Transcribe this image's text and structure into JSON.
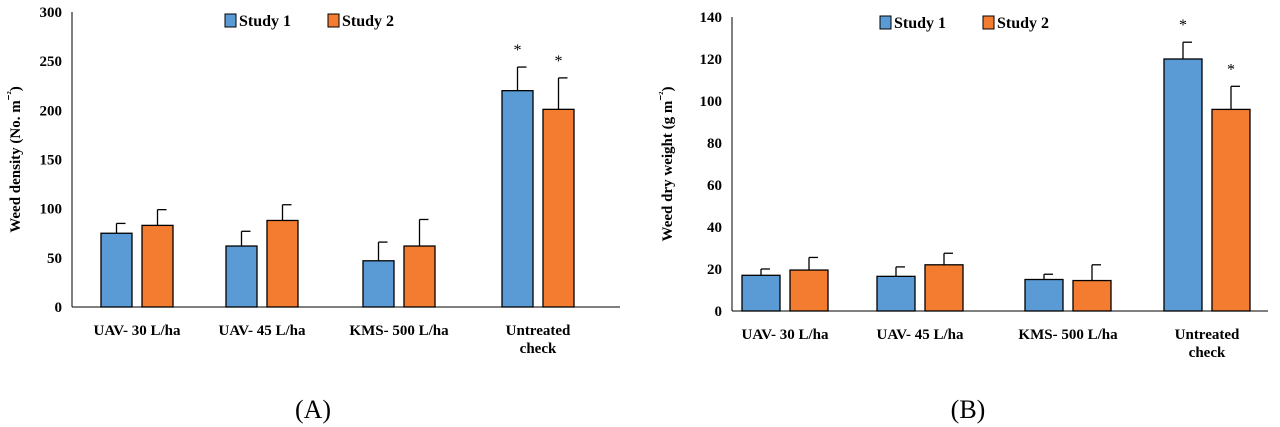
{
  "colors": {
    "study1": "#5B9BD5",
    "study2": "#F47C30",
    "axis": "#000000"
  },
  "chart_data": [
    {
      "type": "bar",
      "panel_label": "(A)",
      "ylabel": "Weed density (No. m⁻²)",
      "ylim": [
        0,
        300
      ],
      "yticks": [
        0,
        50,
        100,
        150,
        200,
        250,
        300
      ],
      "categories": [
        [
          "UAV- 30 L/ha"
        ],
        [
          "UAV- 45 L/ha"
        ],
        [
          "KMS- 500 L/ha"
        ],
        [
          "Untreated",
          "check"
        ]
      ],
      "legend": [
        "Study 1",
        "Study 2"
      ],
      "series": [
        {
          "name": "Study 1",
          "values": [
            75,
            62,
            47,
            220
          ],
          "errors": [
            10,
            15,
            19,
            24
          ],
          "stars": [
            "",
            "",
            "",
            "*"
          ]
        },
        {
          "name": "Study 2",
          "values": [
            83,
            88,
            62,
            201
          ],
          "errors": [
            16,
            16,
            27,
            32
          ],
          "stars": [
            "",
            "",
            "",
            "*"
          ]
        }
      ]
    },
    {
      "type": "bar",
      "panel_label": "(B)",
      "ylabel": "Weed dry weight (g m⁻²)",
      "ylim": [
        0,
        140
      ],
      "yticks": [
        0,
        20,
        40,
        60,
        80,
        100,
        120,
        140
      ],
      "categories": [
        [
          "UAV- 30 L/ha"
        ],
        [
          "UAV- 45 L/ha"
        ],
        [
          "KMS- 500 L/ha"
        ],
        [
          "Untreated",
          "check"
        ]
      ],
      "legend": [
        "Study 1",
        "Study 2"
      ],
      "series": [
        {
          "name": "Study 1",
          "values": [
            17,
            16.5,
            15,
            120
          ],
          "errors": [
            3,
            4.5,
            2.5,
            8
          ],
          "stars": [
            "",
            "",
            "",
            "*"
          ]
        },
        {
          "name": "Study 2",
          "values": [
            19.5,
            22,
            14.5,
            96
          ],
          "errors": [
            6,
            5.5,
            7.5,
            11
          ],
          "stars": [
            "",
            "",
            "",
            "*"
          ]
        }
      ]
    }
  ]
}
